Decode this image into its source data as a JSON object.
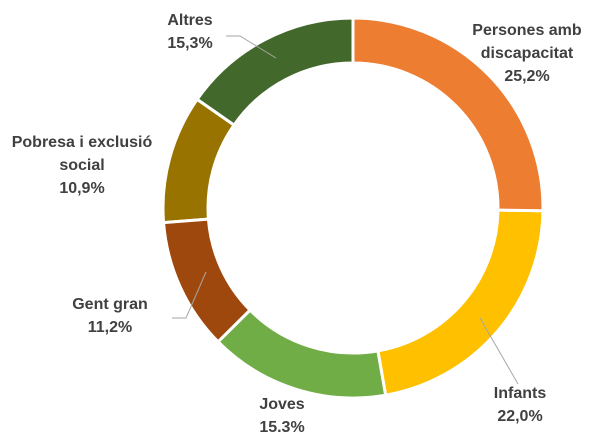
{
  "chart_data": {
    "type": "donut",
    "categories": [
      "Persones amb discapacitat",
      "Infants",
      "Joves",
      "Gent gran",
      "Pobresa i exclusió social",
      "Altres"
    ],
    "values": [
      25.2,
      22.0,
      15.3,
      11.2,
      10.9,
      15.3
    ],
    "value_labels": [
      "25,2%",
      "22,0%",
      "15.3%",
      "11,2%",
      "10,9%",
      "15,3%"
    ],
    "colors": [
      "#ED7D31",
      "#FFC000",
      "#70AD47",
      "#9E480E",
      "#997300",
      "#43682B"
    ]
  }
}
